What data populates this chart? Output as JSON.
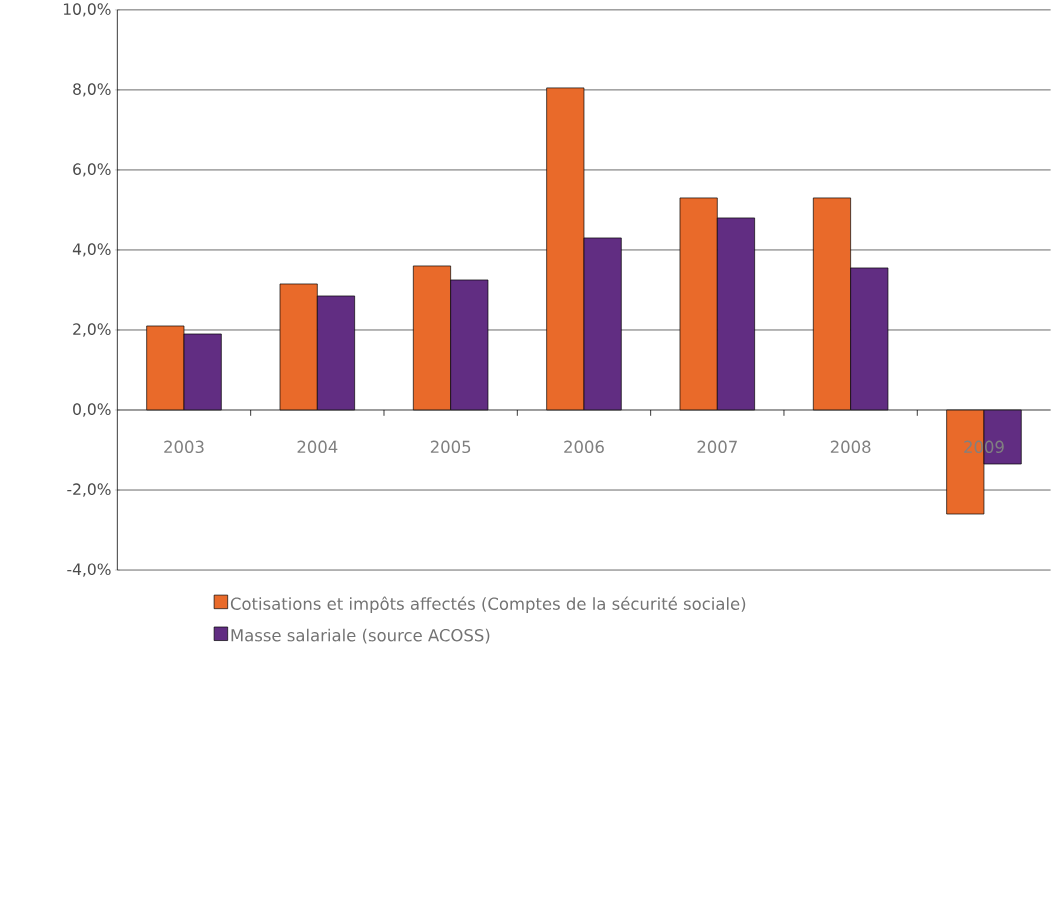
{
  "chart_data": {
    "type": "bar",
    "categories": [
      "2003",
      "2004",
      "2005",
      "2006",
      "2007",
      "2008",
      "2009"
    ],
    "series": [
      {
        "name": "Cotisations et impôts affectés (Comptes de la sécurité sociale)",
        "color": "#e96a2a",
        "values": [
          2.1,
          3.15,
          3.6,
          8.05,
          5.3,
          5.3,
          -2.6
        ]
      },
      {
        "name": "Masse salariale (source ACOSS)",
        "color": "#612d82",
        "values": [
          1.9,
          2.85,
          3.25,
          4.3,
          4.8,
          3.55,
          -1.35
        ]
      }
    ],
    "ylim": [
      -4,
      10
    ],
    "yticks": [
      {
        "value": -4,
        "label": "-4,0%"
      },
      {
        "value": -2,
        "label": "-2,0%"
      },
      {
        "value": 0,
        "label": "0,0%"
      },
      {
        "value": 2,
        "label": "2,0%"
      },
      {
        "value": 4,
        "label": "4,0%"
      },
      {
        "value": 6,
        "label": "6,0%"
      },
      {
        "value": 8,
        "label": "8,0%"
      },
      {
        "value": 10,
        "label": "10,0%"
      }
    ],
    "grid": "y",
    "legend": "bottom"
  }
}
